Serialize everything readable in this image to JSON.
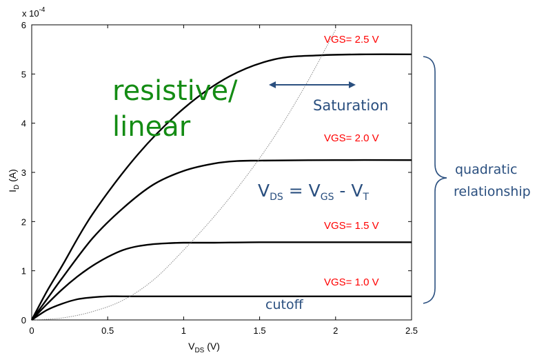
{
  "chart_data": {
    "type": "line",
    "title": "",
    "xlabel": {
      "main": "V",
      "sub": "DS",
      "unit": " (V)"
    },
    "ylabel": {
      "main": "I",
      "sub": "D",
      "unit": " (A)"
    },
    "y_multiplier": {
      "base": "x 10",
      "exp": "-4"
    },
    "xlim": [
      0,
      2.5
    ],
    "ylim": [
      0,
      6
    ],
    "xticks": [
      0,
      0.5,
      1,
      1.5,
      2,
      2.5
    ],
    "xtick_labels": [
      "0",
      "0.5",
      "1",
      "1.5",
      "2",
      "2.5"
    ],
    "yticks": [
      0,
      1,
      2,
      3,
      4,
      5,
      6
    ],
    "ytick_labels": [
      "0",
      "1",
      "2",
      "3",
      "4",
      "5",
      "6"
    ],
    "grid": false,
    "series": [
      {
        "name": "VGS= 1.0 V",
        "x": [
          0,
          0.1,
          0.2,
          0.3,
          0.4,
          0.5,
          0.6,
          0.8,
          1.0,
          1.5,
          2.0,
          2.5
        ],
        "y": [
          0,
          0.2,
          0.33,
          0.42,
          0.46,
          0.48,
          0.48,
          0.48,
          0.48,
          0.48,
          0.48,
          0.48
        ]
      },
      {
        "name": "VGS= 1.5 V",
        "x": [
          0,
          0.1,
          0.2,
          0.3,
          0.4,
          0.5,
          0.6,
          0.7,
          0.8,
          0.9,
          1.0,
          1.2,
          1.5,
          2.0,
          2.5
        ],
        "y": [
          0,
          0.32,
          0.62,
          0.88,
          1.1,
          1.28,
          1.42,
          1.5,
          1.54,
          1.56,
          1.57,
          1.57,
          1.58,
          1.58,
          1.58
        ]
      },
      {
        "name": "VGS= 2.0 V",
        "x": [
          0,
          0.1,
          0.2,
          0.4,
          0.6,
          0.8,
          1.0,
          1.2,
          1.35,
          1.5,
          2.0,
          2.5
        ],
        "y": [
          0,
          0.42,
          0.85,
          1.66,
          2.27,
          2.75,
          3.03,
          3.18,
          3.23,
          3.24,
          3.25,
          3.25
        ]
      },
      {
        "name": "VGS= 2.5 V",
        "x": [
          0,
          0.1,
          0.2,
          0.4,
          0.7,
          1.0,
          1.3,
          1.6,
          1.9,
          2.2,
          2.5
        ],
        "y": [
          0,
          0.58,
          1.1,
          2.15,
          3.37,
          4.3,
          4.95,
          5.3,
          5.38,
          5.4,
          5.4
        ]
      },
      {
        "name": "VDS = VGS - VT",
        "style": "dotted",
        "x": [
          0,
          0.2,
          0.4,
          0.6,
          0.8,
          1.0,
          1.2,
          1.4,
          1.6,
          1.8,
          2.0
        ],
        "y": [
          0,
          0.04,
          0.17,
          0.4,
          0.81,
          1.42,
          2.1,
          2.87,
          3.74,
          4.76,
          5.9
        ]
      }
    ],
    "annotations": {
      "curve_labels": [
        "VGS= 2.5 V",
        "VGS= 2.0 V",
        "VGS= 1.5 V",
        "VGS= 1.0 V"
      ],
      "resistive_line1": "resistive/",
      "resistive_line2": "linear",
      "saturation": "Saturation",
      "cutoff": "cutoff",
      "boundary": {
        "v": "V",
        "ds": "DS",
        "eq": " = ",
        "vgs_v": "V",
        "gs": "GS",
        "minus": " - ",
        "vt_v": "V",
        "t": "T"
      },
      "quadratic_line1": "quadratic",
      "quadratic_line2": "relationship"
    },
    "colors": {
      "curve": "#000000",
      "boundary": "#888888",
      "vgs_label": "#ff0000",
      "region_green": "#148c14",
      "annotation_blue": "#2a4f7f"
    }
  }
}
